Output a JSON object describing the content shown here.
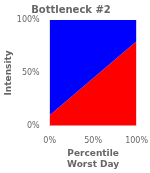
{
  "chart_data": {
    "type": "area",
    "title": "Bottleneck #2",
    "xlabel": [
      "Percentile",
      "Worst Day"
    ],
    "ylabel": "Intensity",
    "x": [
      0,
      100
    ],
    "values": [
      10,
      80
    ],
    "colors": [
      "#0000FF",
      "#FF0000"
    ],
    "xlim": [
      0,
      100
    ],
    "ylim": [
      0,
      100
    ],
    "xticks": [
      {
        "value": 0,
        "label": "0%"
      },
      {
        "value": 50,
        "label": "50%"
      },
      {
        "value": 100,
        "label": "100%"
      }
    ],
    "yticks": [
      {
        "value": 0,
        "label": "0%"
      },
      {
        "value": 50,
        "label": "50%"
      },
      {
        "value": 100,
        "label": "100%"
      }
    ],
    "grid": false
  }
}
